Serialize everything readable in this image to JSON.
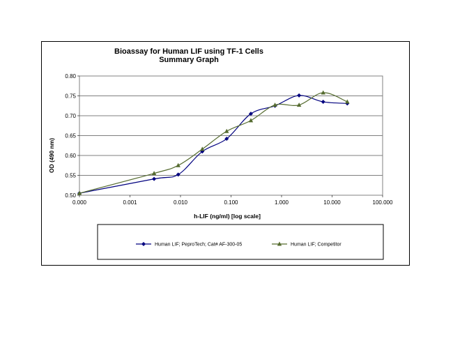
{
  "chart_data": {
    "type": "line",
    "title": "Bioassay for Human LIF using TF-1 Cells",
    "subtitle": "Summary Graph",
    "xlabel": "h-LIF (ng/ml) [log scale]",
    "ylabel": "OD (490 nm)",
    "x_scale": "log",
    "x_tick_labels": [
      "0.000",
      "0.001",
      "0.010",
      "0.100",
      "1.000",
      "10.000",
      "100.000"
    ],
    "x_ticks": [
      0.0001,
      0.001,
      0.01,
      0.1,
      1,
      10,
      100
    ],
    "xlim": [
      0.0001,
      100
    ],
    "y_tick_labels": [
      "0.50",
      "0.55",
      "0.60",
      "0.65",
      "0.70",
      "0.75",
      "0.80"
    ],
    "y_ticks": [
      0.5,
      0.55,
      0.6,
      0.65,
      0.7,
      0.75,
      0.8
    ],
    "ylim": [
      0.5,
      0.8
    ],
    "grid": "horizontal",
    "legend_position": "bottom",
    "series": [
      {
        "name": "Human LIF; PeproTech; Cat# AF-300-05",
        "color": "#00007f",
        "marker": "diamond",
        "x": [
          0.0001,
          0.003,
          0.009,
          0.027,
          0.082,
          0.247,
          0.741,
          2.222,
          6.667,
          20
        ],
        "y": [
          0.505,
          0.541,
          0.552,
          0.61,
          0.642,
          0.705,
          0.725,
          0.751,
          0.735,
          0.731
        ]
      },
      {
        "name": "Human LIF; Competitor",
        "color": "#556b2f",
        "marker": "triangle",
        "x": [
          0.0001,
          0.003,
          0.009,
          0.027,
          0.082,
          0.247,
          0.741,
          2.222,
          6.667,
          20
        ],
        "y": [
          0.505,
          0.555,
          0.575,
          0.616,
          0.661,
          0.688,
          0.727,
          0.727,
          0.758,
          0.735
        ]
      }
    ]
  }
}
